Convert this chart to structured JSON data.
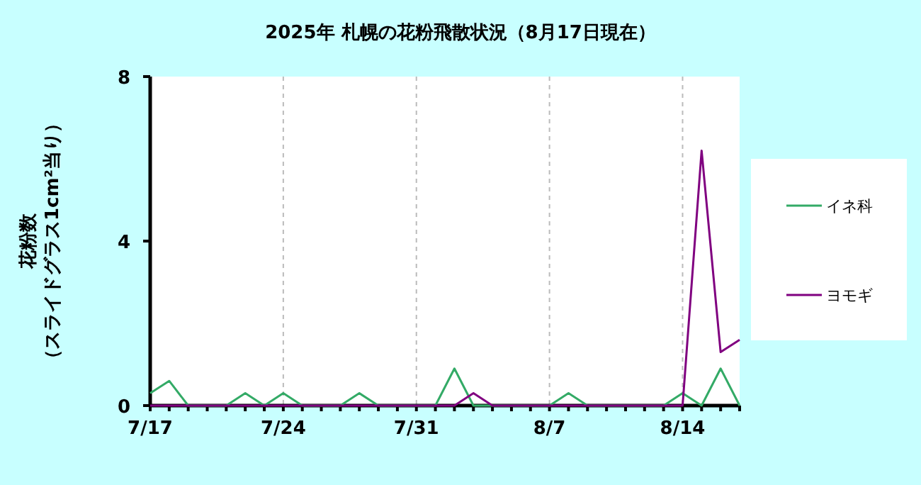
{
  "chart_data": {
    "type": "line",
    "title": "2025年  札幌の花粉飛散状況（8月17日現在）",
    "ylabel": "花粉数（スライドグラス1cm²当り）",
    "categories": [
      "7/17",
      null,
      null,
      null,
      null,
      null,
      null,
      "7/24",
      null,
      null,
      null,
      null,
      null,
      null,
      "7/31",
      null,
      null,
      null,
      null,
      null,
      null,
      "8/7",
      null,
      null,
      null,
      null,
      null,
      null,
      "8/14",
      null,
      null,
      null
    ],
    "ylim": [
      0,
      8
    ],
    "yticks": [
      0,
      4,
      8
    ],
    "grid": "x",
    "legend": "right",
    "marker": "none",
    "line_style": "solid",
    "series": [
      {
        "name": "イネ科",
        "color": "#33aa66",
        "values": [
          0.3,
          0.6,
          0,
          0,
          0,
          0.3,
          0,
          0.3,
          0,
          0,
          0,
          0.3,
          0,
          0,
          0,
          0,
          0.9,
          0,
          0,
          0,
          0,
          0,
          0.3,
          0,
          0,
          0,
          0,
          0,
          0.3,
          0,
          0.9,
          0
        ]
      },
      {
        "name": "ヨモギ",
        "color": "#800080",
        "values": [
          0,
          0,
          0,
          0,
          0,
          0,
          0,
          0,
          0,
          0,
          0,
          0,
          0,
          0,
          0,
          0,
          0,
          0.3,
          0,
          0,
          0,
          0,
          0,
          0,
          0,
          0,
          0,
          0,
          0,
          6.2,
          1.3,
          1.6
        ]
      }
    ]
  }
}
